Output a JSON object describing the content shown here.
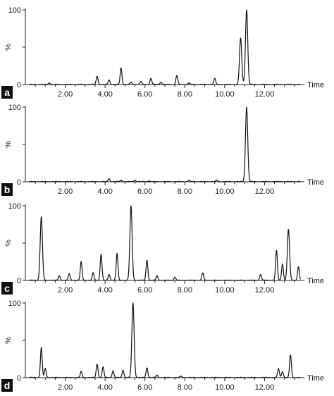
{
  "chart_data": [
    {
      "type": "line",
      "panel_label": "a",
      "xlabel": "Time",
      "ylabel": "%",
      "ytick_labels": [
        "0",
        "100"
      ],
      "xtick_labels": [
        "2.00",
        "4.00",
        "6.00",
        "8.00",
        "10.00",
        "12.00"
      ],
      "xlim": [
        0,
        14
      ],
      "ylim": [
        0,
        100
      ],
      "peaks": [
        {
          "rt": 1.2,
          "height": 2
        },
        {
          "rt": 3.6,
          "height": 11
        },
        {
          "rt": 4.2,
          "height": 6
        },
        {
          "rt": 4.8,
          "height": 22
        },
        {
          "rt": 5.3,
          "height": 3
        },
        {
          "rt": 5.8,
          "height": 4
        },
        {
          "rt": 6.3,
          "height": 8
        },
        {
          "rt": 6.8,
          "height": 3
        },
        {
          "rt": 7.6,
          "height": 12
        },
        {
          "rt": 8.2,
          "height": 2
        },
        {
          "rt": 9.5,
          "height": 8
        },
        {
          "rt": 10.8,
          "height": 62
        },
        {
          "rt": 11.1,
          "height": 100
        }
      ]
    },
    {
      "type": "line",
      "panel_label": "b",
      "xlabel": "Time",
      "ylabel": "%",
      "ytick_labels": [
        "0",
        "100"
      ],
      "xtick_labels": [
        "2.00",
        "4.00",
        "6.00",
        "8.00",
        "10.00",
        "12.00"
      ],
      "xlim": [
        0,
        14
      ],
      "ylim": [
        0,
        100
      ],
      "peaks": [
        {
          "rt": 4.2,
          "height": 4
        },
        {
          "rt": 4.8,
          "height": 2
        },
        {
          "rt": 5.5,
          "height": 2
        },
        {
          "rt": 6.2,
          "height": 1
        },
        {
          "rt": 8.2,
          "height": 2
        },
        {
          "rt": 9.6,
          "height": 2
        },
        {
          "rt": 11.1,
          "height": 100
        }
      ]
    },
    {
      "type": "line",
      "panel_label": "c",
      "xlabel": "Time",
      "ylabel": "%",
      "ytick_labels": [
        "0",
        "100"
      ],
      "xtick_labels": [
        "2.00",
        "4.00",
        "6.00",
        "8.00",
        "10.00",
        "12.00"
      ],
      "xlim": [
        0,
        14
      ],
      "ylim": [
        0,
        100
      ],
      "peaks": [
        {
          "rt": 0.8,
          "height": 85
        },
        {
          "rt": 1.7,
          "height": 6
        },
        {
          "rt": 2.2,
          "height": 9
        },
        {
          "rt": 2.8,
          "height": 25
        },
        {
          "rt": 3.4,
          "height": 10
        },
        {
          "rt": 3.8,
          "height": 35
        },
        {
          "rt": 4.2,
          "height": 8
        },
        {
          "rt": 4.6,
          "height": 36
        },
        {
          "rt": 5.3,
          "height": 100
        },
        {
          "rt": 6.1,
          "height": 27
        },
        {
          "rt": 6.6,
          "height": 6
        },
        {
          "rt": 7.5,
          "height": 4
        },
        {
          "rt": 8.9,
          "height": 10
        },
        {
          "rt": 11.8,
          "height": 8
        },
        {
          "rt": 12.6,
          "height": 40
        },
        {
          "rt": 12.9,
          "height": 22
        },
        {
          "rt": 13.2,
          "height": 68
        },
        {
          "rt": 13.7,
          "height": 18
        }
      ]
    },
    {
      "type": "line",
      "panel_label": "d",
      "xlabel": "Time",
      "ylabel": "%",
      "ytick_labels": [
        "0",
        "100"
      ],
      "xtick_labels": [
        "2.00",
        "4.00",
        "6.00",
        "8.00",
        "10.00",
        "12.00"
      ],
      "xlim": [
        0,
        14
      ],
      "ylim": [
        0,
        100
      ],
      "peaks": [
        {
          "rt": 0.8,
          "height": 40
        },
        {
          "rt": 1.0,
          "height": 12
        },
        {
          "rt": 2.8,
          "height": 8
        },
        {
          "rt": 3.6,
          "height": 18
        },
        {
          "rt": 3.9,
          "height": 14
        },
        {
          "rt": 4.4,
          "height": 9
        },
        {
          "rt": 4.9,
          "height": 10
        },
        {
          "rt": 5.4,
          "height": 100
        },
        {
          "rt": 6.1,
          "height": 13
        },
        {
          "rt": 6.6,
          "height": 3
        },
        {
          "rt": 7.8,
          "height": 2
        },
        {
          "rt": 12.7,
          "height": 12
        },
        {
          "rt": 12.9,
          "height": 8
        },
        {
          "rt": 13.3,
          "height": 30
        }
      ]
    }
  ]
}
